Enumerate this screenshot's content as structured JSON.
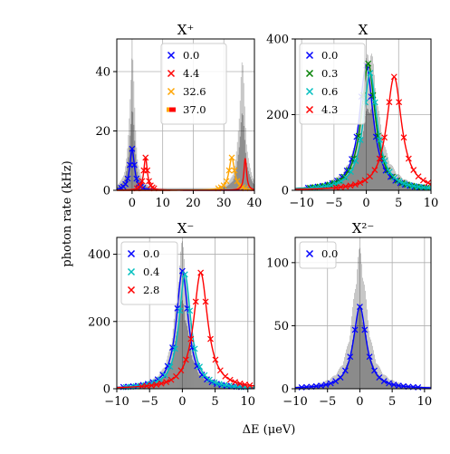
{
  "figure": {
    "ylabel": "photon rate (kHz)",
    "xlabel": "ΔE (μeV)"
  },
  "chart_data": [
    {
      "type": "line",
      "title": "X⁺",
      "xlim": [
        -5,
        40
      ],
      "ylim": [
        0,
        51
      ],
      "xticks": [
        0,
        10,
        20,
        30,
        40
      ],
      "yticks": [
        0,
        20,
        40
      ],
      "grid": true,
      "legend_position": "top-center",
      "series": [
        {
          "name": "0.0",
          "color": "#0000ff",
          "marker": "x",
          "center": 0.0,
          "width": 0.9,
          "peak": 14
        },
        {
          "name": "4.4",
          "color": "#ff0000",
          "marker": "x",
          "center": 4.4,
          "width": 0.7,
          "peak": 11
        },
        {
          "name": "32.6",
          "color": "#ffa500",
          "marker": "x",
          "center": 32.6,
          "width": 1.1,
          "peak": 11
        },
        {
          "name": "37.0",
          "color": "#ff0000",
          "marker": "line",
          "center": 37.0,
          "width": 0.5,
          "peak": 11
        }
      ]
    },
    {
      "type": "line",
      "title": "X",
      "xlim": [
        -11,
        10
      ],
      "ylim": [
        0,
        400
      ],
      "xticks": [
        -10,
        -5,
        0,
        5,
        10
      ],
      "yticks": [
        0,
        200,
        400
      ],
      "grid": true,
      "legend_position": "top-left",
      "series": [
        {
          "name": "0.0",
          "color": "#0000ff",
          "marker": "x",
          "center": 0.0,
          "width": 1.3,
          "peak": 330
        },
        {
          "name": "0.3",
          "color": "#008000",
          "marker": "x",
          "center": 0.3,
          "width": 1.3,
          "peak": 335
        },
        {
          "name": "0.6",
          "color": "#00bfbf",
          "marker": "x",
          "center": 0.6,
          "width": 1.3,
          "peak": 310
        },
        {
          "name": "4.3",
          "color": "#ff0000",
          "marker": "x",
          "center": 4.3,
          "width": 1.4,
          "peak": 300
        }
      ]
    },
    {
      "type": "line",
      "title": "X⁻",
      "xlim": [
        -10,
        11
      ],
      "ylim": [
        0,
        450
      ],
      "xticks": [
        -10,
        -5,
        0,
        5,
        10
      ],
      "yticks": [
        0,
        200,
        400
      ],
      "grid": true,
      "legend_position": "top-left",
      "series": [
        {
          "name": "0.0",
          "color": "#0000ff",
          "marker": "x",
          "center": 0.0,
          "width": 1.1,
          "peak": 350
        },
        {
          "name": "0.4",
          "color": "#00bfbf",
          "marker": "x",
          "center": 0.4,
          "width": 1.1,
          "peak": 340
        },
        {
          "name": "2.8",
          "color": "#ff0000",
          "marker": "x",
          "center": 2.8,
          "width": 1.3,
          "peak": 345
        }
      ]
    },
    {
      "type": "line",
      "title": "X²⁻",
      "xlim": [
        -10,
        11
      ],
      "ylim": [
        0,
        120
      ],
      "xticks": [
        -10,
        -5,
        0,
        5,
        10
      ],
      "yticks": [
        0,
        50,
        100
      ],
      "grid": true,
      "legend_position": "top-left",
      "series": [
        {
          "name": "0.0",
          "color": "#0000ff",
          "marker": "x",
          "center": 0.0,
          "width": 1.2,
          "peak": 65
        }
      ]
    }
  ]
}
